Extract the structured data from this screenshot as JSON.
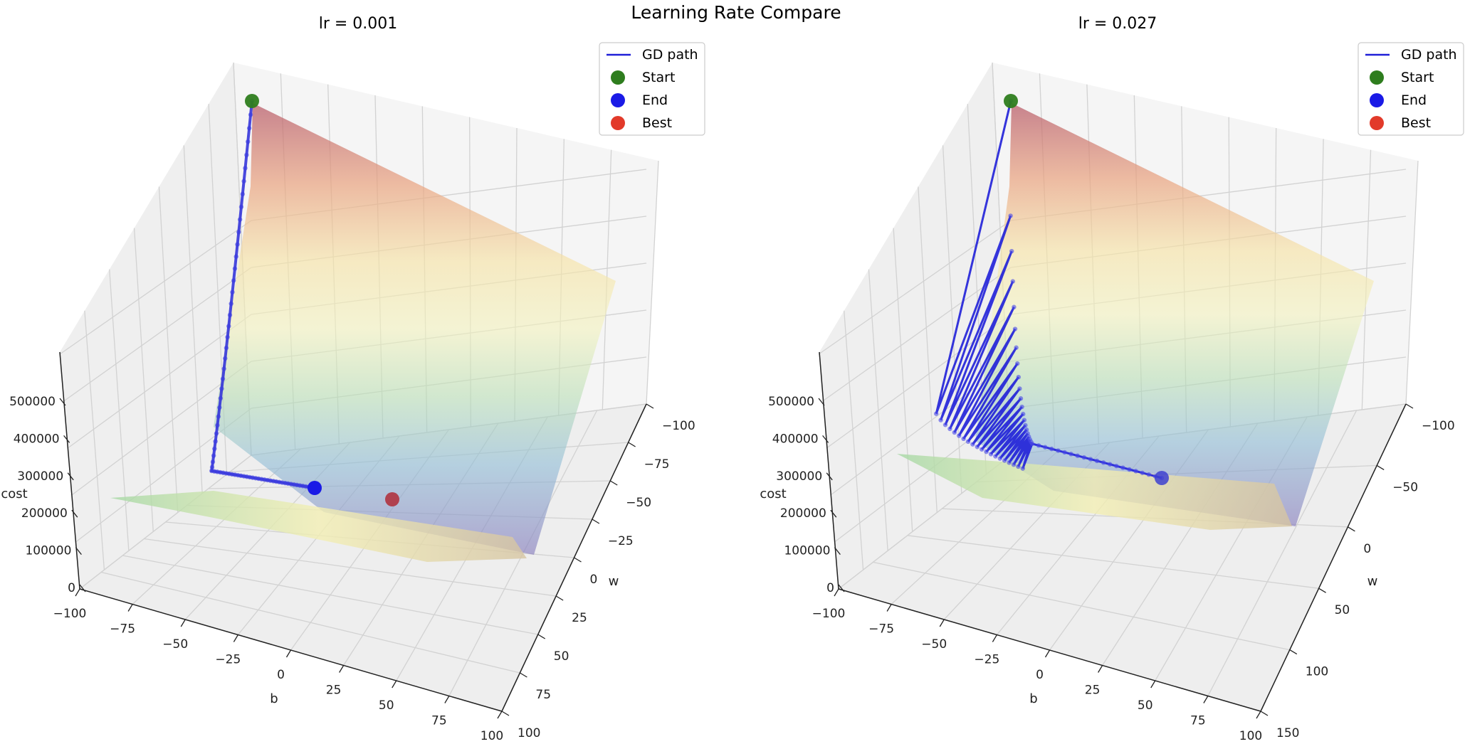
{
  "figure": {
    "title": "Learning Rate Compare"
  },
  "legend": {
    "items": [
      {
        "label": "GD path",
        "kind": "line",
        "color": "#1f1fd8"
      },
      {
        "label": "Start",
        "kind": "marker",
        "color": "#2e7d1e"
      },
      {
        "label": "End",
        "kind": "marker",
        "color": "#1a1ae6"
      },
      {
        "label": "Best",
        "kind": "marker",
        "color": "#e23a2a"
      }
    ]
  },
  "chart_data": [
    {
      "type": "surface3d",
      "title": "lr = 0.001",
      "xlabel": "b",
      "ylabel": "w",
      "zlabel": "cost",
      "b_ticks": [
        -100,
        -75,
        -50,
        -25,
        0,
        25,
        50,
        75,
        100
      ],
      "w_ticks": [
        -100,
        -75,
        -50,
        -25,
        0,
        25,
        50,
        75,
        100
      ],
      "cost_ticks": [
        0,
        100000,
        200000,
        300000,
        400000,
        500000
      ],
      "colormap": "Spectral_r",
      "path": {
        "start": {
          "b": -100,
          "w": -100
        },
        "corner": {
          "b": -90,
          "w": 37
        },
        "end": {
          "b": -52,
          "w": 32
        },
        "steps": 140
      },
      "best": {
        "b": 5,
        "w": 30
      }
    },
    {
      "type": "surface3d",
      "title": "lr = 0.027",
      "xlabel": "b",
      "ylabel": "w",
      "zlabel": "cost",
      "b_ticks": [
        -100,
        -75,
        -50,
        -25,
        0,
        25,
        50,
        75,
        100
      ],
      "w_ticks": [
        -100,
        -50,
        0,
        50,
        100,
        150
      ],
      "cost_ticks": [
        0,
        100000,
        200000,
        300000,
        400000,
        500000
      ],
      "colormap": "Spectral_r",
      "path": {
        "start": {
          "b": -100,
          "w": -100
        },
        "oscillation": "zigzag along w, damping toward w ≈ 30",
        "end": {
          "b": -22,
          "w": 30
        },
        "steps": 60
      },
      "best": null
    }
  ]
}
